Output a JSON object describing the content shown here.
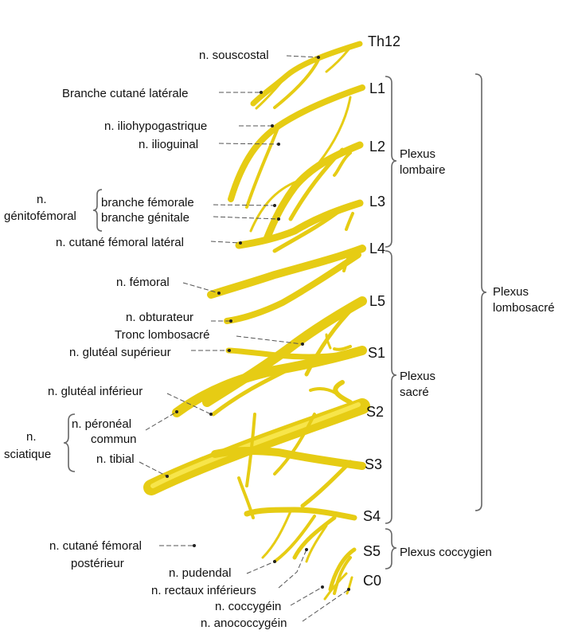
{
  "segments": {
    "th12": "Th12",
    "l1": "L1",
    "l2": "L2",
    "l3": "L3",
    "l4": "L4",
    "l5": "L5",
    "s1": "S1",
    "s2": "S2",
    "s3": "S3",
    "s4": "S4",
    "s5": "S5",
    "c0": "C0"
  },
  "plexus": {
    "lombaire": [
      "Plexus",
      "lombaire"
    ],
    "sacre": [
      "Plexus",
      "sacré"
    ],
    "coccygien": "Plexus coccygien",
    "lombosacre": [
      "Plexus",
      "lombosacré"
    ]
  },
  "nerves": {
    "souscostal": "n. souscostal",
    "cutane_laterale": "Branche cutané latérale",
    "iliohypogastrique": "n. iliohypogastrique",
    "ilioguinal": "n. ilioguinal",
    "genitofemoral": [
      "n.",
      "génitofémoral"
    ],
    "branche_femorale": "branche fémorale",
    "branche_genitale": "branche génitale",
    "cutane_femoral_lateral": "n. cutané fémoral latéral",
    "femoral": "n. fémoral",
    "obturateur": "n. obturateur",
    "tronc_lombosacre": "Tronc lombosacré",
    "gluteal_superieur": "n. glutéal supérieur",
    "gluteal_inferieur": "n. glutéal inférieur",
    "peroneal_commun": [
      "n. péronéal",
      "commun"
    ],
    "sciatique": [
      "n.",
      "sciatique"
    ],
    "tibial": "n. tibial",
    "cutane_femoral_posterieur": [
      "n. cutané fémoral",
      "postérieur"
    ],
    "pudendal": "n. pudendal",
    "rectaux_inferieurs": "n. rectaux inférieurs",
    "coccygein": "n. coccygéin",
    "anococcygein": "n. anococcygéin"
  },
  "colors": {
    "nerve": "#e6cc14",
    "nerve_highlight": "#f7e54a",
    "leader": "#555555"
  }
}
